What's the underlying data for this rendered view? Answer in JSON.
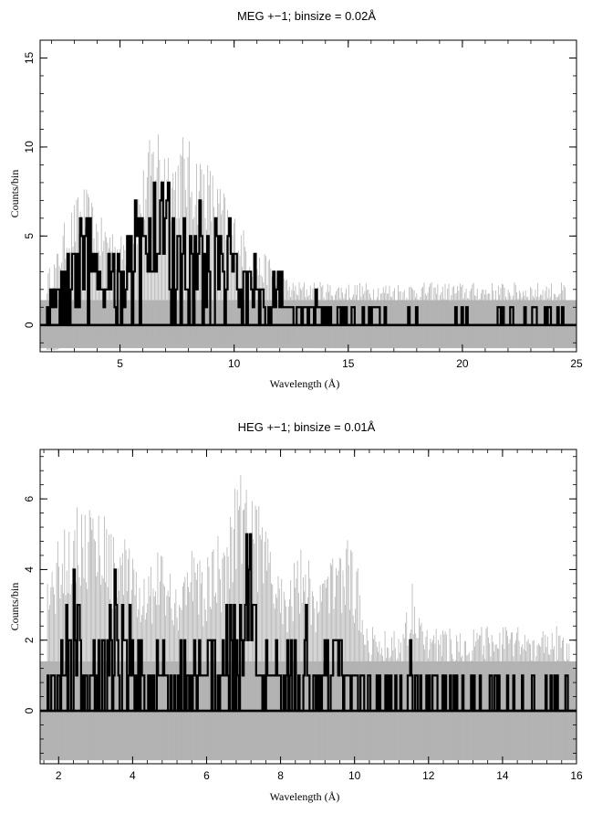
{
  "chart_data": [
    {
      "type": "line",
      "title": "MEG +−1; binsize = 0.02Å",
      "xlabel": "Wavelength (Å)",
      "ylabel": "Counts/bin",
      "xlim": [
        1.5,
        25
      ],
      "ylim": [
        -1.5,
        16
      ],
      "xticks": [
        5,
        10,
        15,
        20,
        25
      ],
      "yticks": [
        0,
        5,
        10,
        15
      ],
      "grid": false,
      "legend": "none",
      "colors": {
        "counts": "#000000",
        "errors": "#b3b3b3"
      },
      "series": [
        {
          "role": "counts",
          "style": "step",
          "x": [
            1.8,
            2.2,
            2.6,
            3.0,
            3.4,
            3.8,
            4.2,
            4.6,
            5.0,
            5.4,
            5.8,
            6.2,
            6.6,
            7.0,
            7.4,
            7.8,
            8.2,
            8.6,
            9.0,
            9.4,
            9.8,
            10.2,
            10.6,
            11.0,
            11.5,
            12.0,
            12.5,
            13.0,
            13.5,
            14.0,
            14.5,
            15.0,
            15.5,
            16.0,
            16.5,
            17.0,
            17.5,
            18.0,
            18.5,
            19.0,
            19.5,
            20.0,
            20.5,
            21.0,
            21.5,
            22.0,
            22.5,
            23.0,
            23.5,
            24.0,
            24.5
          ],
          "y": [
            1,
            2,
            3,
            4,
            5,
            4,
            3,
            3,
            2,
            3,
            4,
            6,
            7,
            7,
            6,
            6,
            6,
            6,
            5,
            5,
            4,
            3,
            3,
            2,
            2,
            2,
            1,
            1,
            1,
            0.8,
            0.6,
            0.5,
            0.4,
            0.3,
            0.2,
            0.2,
            0.2,
            0.2,
            0.1,
            0.1,
            0.2,
            0.2,
            0.2,
            0.2,
            0.2,
            0.2,
            0.2,
            0.2,
            0.2,
            0.2,
            0.2
          ],
          "peak_y": [
            2,
            4,
            6,
            8,
            8,
            8,
            6,
            6,
            4,
            6,
            9,
            11,
            12,
            11,
            10,
            11,
            10,
            10,
            9,
            8,
            7,
            6,
            5,
            4,
            4,
            3,
            2,
            2,
            2,
            1,
            1,
            1,
            1,
            1,
            1,
            0,
            1,
            1,
            0,
            0,
            1,
            1,
            1,
            1,
            1,
            1,
            1,
            1,
            1,
            1,
            1
          ]
        },
        {
          "role": "errors",
          "style": "band",
          "x": [
            1.8,
            2.2,
            2.6,
            3.0,
            3.4,
            3.8,
            4.2,
            4.6,
            5.0,
            5.4,
            5.8,
            6.2,
            6.6,
            7.0,
            7.4,
            7.8,
            8.2,
            8.6,
            9.0,
            9.4,
            9.8,
            10.2,
            10.6,
            11.0,
            11.5,
            12.0,
            12.5,
            13.0,
            13.5,
            14.0,
            14.5,
            15.0,
            15.5,
            16.0,
            16.5,
            17.0,
            17.5,
            18.0,
            18.5,
            19.0,
            19.5,
            20.0,
            20.5,
            21.0,
            21.5,
            22.0,
            22.5,
            23.0,
            23.5,
            24.0,
            24.5
          ],
          "low": [
            -1.4,
            -1.4,
            -1.2,
            -1,
            -1,
            -1,
            -1,
            -1,
            -1,
            -1,
            -1,
            -1,
            -1,
            -1,
            -1,
            -1,
            -1,
            -1,
            -1,
            -1,
            -1,
            -1,
            -1,
            -1,
            -1,
            -1,
            -1,
            -1,
            -1.3,
            -1.3,
            -1.3,
            -1.3,
            -1.3,
            -1.3,
            -1.3,
            -1.3,
            -1.3,
            -1.3,
            -1.3,
            -1.3,
            -1.3,
            -1.3,
            -1.3,
            -1.3,
            -1.3,
            -1.3,
            -1.3,
            -1.3,
            -1.3,
            -1.3,
            -1.3
          ],
          "high": [
            3,
            4,
            6,
            7,
            8,
            7,
            6,
            6,
            5,
            6,
            8,
            10,
            12,
            11,
            10,
            11,
            10,
            10,
            9,
            8,
            7,
            6,
            5,
            4,
            4,
            3,
            2.5,
            2.5,
            2.5,
            2.4,
            2.4,
            2.4,
            2.4,
            2.4,
            2.4,
            2.4,
            2.4,
            2.4,
            2.4,
            2.4,
            2.4,
            2.4,
            2.4,
            2.4,
            2.4,
            2.4,
            2.4,
            2.4,
            2.4,
            2.4,
            2.4
          ],
          "floor_high": 1.4
        }
      ]
    },
    {
      "type": "line",
      "title": "HEG +−1; binsize = 0.01Å",
      "xlabel": "Wavelength (Å)",
      "ylabel": "Counts/bin",
      "xlim": [
        1.5,
        16
      ],
      "ylim": [
        -1.5,
        7.4
      ],
      "xticks": [
        2,
        4,
        6,
        8,
        10,
        12,
        14,
        16
      ],
      "yticks": [
        0,
        2,
        4,
        6
      ],
      "grid": false,
      "legend": "none",
      "colors": {
        "counts": "#000000",
        "errors": "#b3b3b3"
      },
      "series": [
        {
          "role": "counts",
          "style": "step",
          "x": [
            1.7,
            2.0,
            2.3,
            2.6,
            2.9,
            3.2,
            3.5,
            3.8,
            4.1,
            4.4,
            4.7,
            5.0,
            5.3,
            5.6,
            5.9,
            6.2,
            6.5,
            6.8,
            7.1,
            7.4,
            7.7,
            8.0,
            8.3,
            8.6,
            8.9,
            9.2,
            9.5,
            9.8,
            10.1,
            10.4,
            10.7,
            11.0,
            11.3,
            11.6,
            11.9,
            12.2,
            12.5,
            12.8,
            13.1,
            13.4,
            13.7,
            14.0,
            14.3,
            14.6,
            14.9,
            15.2,
            15.5,
            15.8
          ],
          "y": [
            0.5,
            1,
            1,
            1.5,
            1.5,
            1.5,
            1,
            1,
            0.8,
            0.8,
            0.8,
            0.8,
            0.8,
            0.8,
            0.8,
            1,
            1,
            1.5,
            1.5,
            1,
            1,
            0.8,
            0.8,
            0.8,
            0.8,
            0.8,
            0.6,
            0.6,
            0.6,
            0.5,
            0.5,
            0.5,
            0.5,
            0.5,
            0.3,
            0.3,
            0.3,
            0.3,
            0.3,
            0.3,
            0.3,
            0.3,
            0.3,
            0.3,
            0.3,
            0.3,
            0.3,
            0.3
          ],
          "peak_y": [
            2,
            3,
            4,
            4,
            4,
            4,
            4,
            4,
            2,
            2,
            3,
            2,
            2,
            3,
            2,
            3,
            3,
            5,
            5,
            4,
            3,
            2,
            2,
            3,
            2,
            2,
            3,
            3,
            2,
            1,
            1,
            1,
            1,
            2,
            1,
            1,
            1,
            1,
            1,
            1,
            1,
            1,
            1,
            1,
            1,
            1,
            1,
            1
          ]
        },
        {
          "role": "errors",
          "style": "band",
          "x": [
            1.7,
            2.0,
            2.3,
            2.6,
            2.9,
            3.2,
            3.5,
            3.8,
            4.1,
            4.4,
            4.7,
            5.0,
            5.3,
            5.6,
            5.9,
            6.2,
            6.5,
            6.8,
            7.1,
            7.4,
            7.7,
            8.0,
            8.3,
            8.6,
            8.9,
            9.2,
            9.5,
            9.8,
            10.1,
            10.4,
            10.7,
            11.0,
            11.3,
            11.6,
            11.9,
            12.2,
            12.5,
            12.8,
            13.1,
            13.4,
            13.7,
            14.0,
            14.3,
            14.6,
            14.9,
            15.2,
            15.5,
            15.8
          ],
          "low": [
            -1.4,
            -1.4,
            -1.4,
            -1.4,
            -1.4,
            -1.4,
            -1.4,
            -1.4,
            -1.4,
            -1.4,
            -1.4,
            -1.4,
            -1.4,
            -1.4,
            -1.4,
            -1.4,
            -1.4,
            -1.4,
            -1.4,
            -1.4,
            -1.4,
            -1.4,
            -1.4,
            -1.4,
            -1.4,
            -1.4,
            -1.4,
            -1.4,
            -1.4,
            -1.4,
            -1.4,
            -1.4,
            -1.4,
            -1.4,
            -1.4,
            -1.4,
            -1.4,
            -1.4,
            -1.4,
            -1.4,
            -1.4,
            -1.4,
            -1.4,
            -1.4,
            -1.4,
            -1.4,
            -1.4,
            -1.4
          ],
          "high": [
            4,
            5,
            6,
            6,
            6,
            6,
            5,
            5,
            4,
            4,
            5,
            4,
            4,
            5,
            4,
            5,
            5,
            7.2,
            7.2,
            6,
            5,
            4,
            4,
            5,
            4,
            4,
            5,
            5,
            4,
            2.4,
            2.4,
            2.4,
            2.4,
            4,
            2.4,
            2.4,
            2.4,
            2.4,
            2.4,
            2.4,
            2.4,
            2.4,
            2.4,
            2.4,
            2.4,
            2.4,
            2.4,
            2.4
          ],
          "floor_high": 1.4
        }
      ]
    }
  ]
}
